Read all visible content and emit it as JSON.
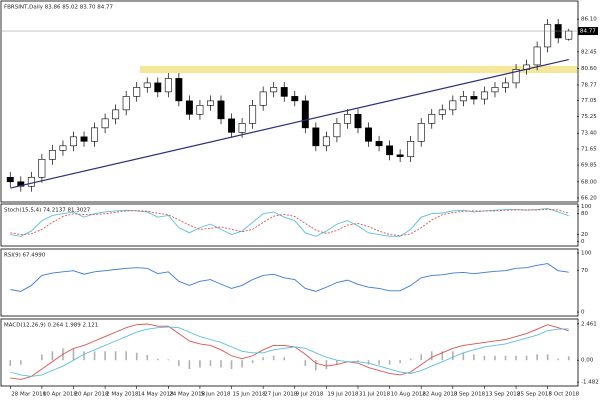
{
  "chart_data": [
    {
      "type": "candlestick",
      "title": "FBRSINT,Daily  83.86 85.02 83.70 84.77",
      "categories": [
        "28 Mar 2018",
        null,
        null,
        "10 Apr 2018",
        null,
        null,
        "20 Apr 2018",
        null,
        null,
        "2 May 2018",
        null,
        null,
        "14 May 2018",
        null,
        null,
        "24 May 2018",
        null,
        null,
        "5 Jun 2018",
        null,
        null,
        "15 Jun 2018",
        null,
        null,
        "27 Jun 2018",
        null,
        null,
        "9 Jul 2018",
        null,
        null,
        "19 Jul 2018",
        null,
        null,
        "31 Jul 2018",
        null,
        null,
        "10 Aug 2018",
        null,
        null,
        "22 Aug 2018",
        null,
        null,
        "3 Sep 2018",
        null,
        null,
        "13 Sep 2018",
        null,
        null,
        "25 Sep 2018",
        null,
        null,
        "5 Oct 2018",
        null,
        null
      ],
      "open": [
        68.5,
        68.0,
        67.5,
        68.5,
        70.5,
        71.5,
        72.0,
        73.0,
        72.5,
        74.0,
        75.0,
        76.0,
        77.5,
        78.5,
        79.0,
        78.0,
        79.5,
        77.0,
        75.5,
        76.5,
        77.0,
        75.0,
        73.5,
        74.5,
        76.5,
        78.0,
        78.5,
        77.5,
        77.0,
        74.0,
        72.0,
        73.0,
        74.5,
        75.5,
        74.0,
        72.5,
        72.0,
        71.0,
        70.8,
        72.5,
        74.5,
        75.5,
        76.0,
        77.0,
        77.5,
        77.2,
        78.0,
        78.5,
        79.0,
        80.5,
        81.0,
        83.0,
        85.5,
        83.86
      ],
      "high": [
        69.1,
        68.6,
        69.1,
        71.1,
        72.1,
        72.6,
        73.6,
        73.6,
        74.6,
        75.6,
        76.6,
        78.1,
        79.1,
        79.6,
        79.6,
        80.1,
        80.1,
        77.6,
        77.1,
        77.6,
        77.6,
        75.6,
        75.1,
        77.1,
        78.6,
        79.1,
        79.1,
        78.1,
        77.6,
        74.6,
        73.6,
        75.1,
        76.1,
        76.1,
        74.6,
        73.1,
        72.6,
        71.6,
        73.1,
        75.1,
        76.1,
        76.6,
        77.6,
        78.1,
        78.1,
        78.6,
        79.1,
        79.6,
        81.1,
        81.6,
        83.6,
        86.1,
        86.1,
        85.02
      ],
      "low": [
        67.4,
        66.9,
        66.9,
        67.9,
        69.9,
        70.9,
        71.4,
        71.9,
        71.9,
        73.4,
        74.4,
        75.4,
        76.9,
        77.9,
        77.4,
        77.4,
        76.4,
        74.9,
        74.9,
        75.9,
        74.4,
        72.9,
        72.9,
        73.9,
        75.9,
        77.4,
        76.9,
        76.4,
        73.4,
        71.4,
        71.4,
        72.4,
        73.9,
        73.4,
        71.9,
        71.4,
        70.4,
        70.2,
        70.2,
        71.9,
        73.9,
        74.9,
        75.4,
        76.4,
        76.6,
        76.6,
        77.4,
        77.9,
        78.4,
        79.9,
        80.4,
        82.4,
        83.4,
        83.7
      ],
      "close": [
        68.0,
        67.5,
        68.5,
        70.5,
        71.5,
        72.0,
        73.0,
        72.5,
        74.0,
        75.0,
        76.0,
        77.5,
        78.5,
        79.0,
        78.0,
        79.5,
        77.0,
        75.5,
        76.5,
        77.0,
        75.0,
        73.5,
        74.5,
        76.5,
        78.0,
        78.5,
        77.5,
        77.0,
        74.0,
        72.0,
        73.0,
        74.5,
        75.5,
        74.0,
        72.5,
        72.0,
        71.0,
        70.8,
        72.5,
        74.5,
        75.5,
        76.0,
        77.0,
        77.5,
        77.2,
        78.0,
        78.5,
        79.0,
        80.5,
        81.0,
        83.0,
        85.5,
        84.0,
        84.77
      ],
      "ylim": [
        65.75,
        88.0
      ],
      "yticks": [
        {
          "value": 66.2,
          "label": "66.20"
        },
        {
          "value": 68,
          "label": "68.00"
        },
        69.85,
        71.65,
        {
          "value": 73.4,
          "label": "73.40"
        },
        75.25,
        77.05,
        78.77,
        {
          "value": 80.6,
          "label": "80.60"
        },
        82.45,
        {
          "value": 86.1,
          "label": "86.10"
        }
      ],
      "last_price": 84.77,
      "zone": [
        80.1,
        80.9
      ],
      "zone_color": "#f5e79a",
      "trendline": [
        67.3,
        81.6
      ],
      "trendline_color": "#2b2f7a",
      "up_color": "#ffffff",
      "down_color": "#000000"
    },
    {
      "type": "line",
      "title": "Stoch(15,5,4) 74.2137 81.3027",
      "series": [
        {
          "color": "#5bc0de",
          "dash": false,
          "values": [
            20,
            15,
            30,
            60,
            75,
            80,
            85,
            70,
            80,
            85,
            88,
            90,
            88,
            85,
            70,
            75,
            40,
            25,
            40,
            50,
            35,
            20,
            30,
            55,
            80,
            85,
            70,
            60,
            25,
            15,
            30,
            50,
            60,
            45,
            25,
            20,
            15,
            15,
            35,
            70,
            80,
            82,
            88,
            90,
            85,
            88,
            90,
            92,
            92,
            90,
            92,
            95,
            85,
            74
          ]
        },
        {
          "color": "#d9534f",
          "dash": true,
          "values": [
            25,
            20,
            22,
            35,
            55,
            72,
            80,
            78,
            78,
            80,
            84,
            88,
            89,
            87,
            81,
            77,
            62,
            47,
            35,
            38,
            42,
            35,
            28,
            35,
            55,
            73,
            78,
            72,
            52,
            33,
            23,
            32,
            47,
            52,
            43,
            30,
            20,
            17,
            22,
            40,
            62,
            77,
            83,
            87,
            88,
            88,
            88,
            90,
            91,
            91,
            91,
            92,
            91,
            81
          ]
        }
      ],
      "ylim": [
        -10,
        105
      ],
      "yticks": [
        0,
        20,
        80,
        100
      ]
    },
    {
      "type": "line",
      "title": "RSI(9) 67.4990",
      "series": [
        {
          "color": "#3a7bd5",
          "dash": false,
          "values": [
            38,
            35,
            45,
            62,
            66,
            68,
            70,
            64,
            68,
            70,
            72,
            74,
            75,
            74,
            65,
            68,
            52,
            45,
            52,
            55,
            47,
            40,
            45,
            55,
            62,
            64,
            58,
            55,
            40,
            35,
            42,
            50,
            54,
            47,
            42,
            40,
            36,
            36,
            45,
            58,
            62,
            63,
            66,
            67,
            65,
            67,
            69,
            70,
            74,
            75,
            79,
            82,
            70,
            67.5
          ]
        }
      ],
      "ylim": [
        -5,
        105
      ],
      "yticks": [
        0,
        70,
        100
      ]
    },
    {
      "type": "line",
      "title": "MACD(12,26,9) 0.264 1.989 2.121",
      "bars": {
        "color": "#b0b0b0",
        "values": [
          -0.4,
          -0.3,
          0,
          0.4,
          0.6,
          0.8,
          0.8,
          0.6,
          0.6,
          0.6,
          0.6,
          0.6,
          0.5,
          0.35,
          0.1,
          0.05,
          -0.4,
          -0.6,
          -0.5,
          -0.4,
          -0.5,
          -0.6,
          -0.5,
          -0.2,
          0.2,
          0.3,
          0.2,
          0,
          -0.4,
          -0.7,
          -0.6,
          -0.3,
          0,
          -0.1,
          -0.3,
          -0.3,
          -0.3,
          -0.2,
          0.1,
          0.4,
          0.6,
          0.6,
          0.6,
          0.5,
          0.4,
          0.3,
          0.3,
          0.3,
          0.3,
          0.3,
          0.4,
          0.4,
          0.1,
          0.264
        ]
      },
      "series": [
        {
          "color": "#d9534f",
          "dash": false,
          "values": [
            -1.2,
            -1.3,
            -1.1,
            -0.6,
            -0.1,
            0.4,
            0.8,
            1.0,
            1.3,
            1.6,
            1.9,
            2.2,
            2.4,
            2.45,
            2.3,
            2.3,
            1.8,
            1.3,
            1.1,
            1.0,
            0.7,
            0.3,
            0.1,
            0.3,
            0.7,
            1.0,
            1.0,
            0.9,
            0.4,
            -0.2,
            -0.4,
            -0.3,
            -0.1,
            -0.2,
            -0.5,
            -0.7,
            -0.9,
            -1.0,
            -0.8,
            -0.3,
            0.2,
            0.5,
            0.8,
            1.0,
            1.1,
            1.2,
            1.3,
            1.4,
            1.6,
            1.8,
            2.1,
            2.4,
            2.2,
            1.989
          ]
        },
        {
          "color": "#5bc0de",
          "dash": false,
          "values": [
            -0.8,
            -1.0,
            -1.1,
            -1.0,
            -0.7,
            -0.4,
            0.0,
            0.4,
            0.7,
            1.0,
            1.3,
            1.6,
            1.9,
            2.1,
            2.2,
            2.25,
            2.2,
            1.9,
            1.6,
            1.4,
            1.2,
            0.9,
            0.6,
            0.5,
            0.5,
            0.7,
            0.8,
            0.9,
            0.8,
            0.5,
            0.2,
            0.0,
            -0.1,
            -0.1,
            -0.2,
            -0.4,
            -0.6,
            -0.8,
            -0.9,
            -0.7,
            -0.4,
            -0.1,
            0.2,
            0.5,
            0.7,
            0.9,
            1.0,
            1.1,
            1.3,
            1.5,
            1.7,
            2.0,
            2.1,
            2.121
          ]
        }
      ],
      "ylim": [
        -1.68,
        2.72
      ],
      "yticks": [
        -1.482,
        {
          "value": 0,
          "label": "0.00"
        },
        2.461
      ]
    }
  ]
}
